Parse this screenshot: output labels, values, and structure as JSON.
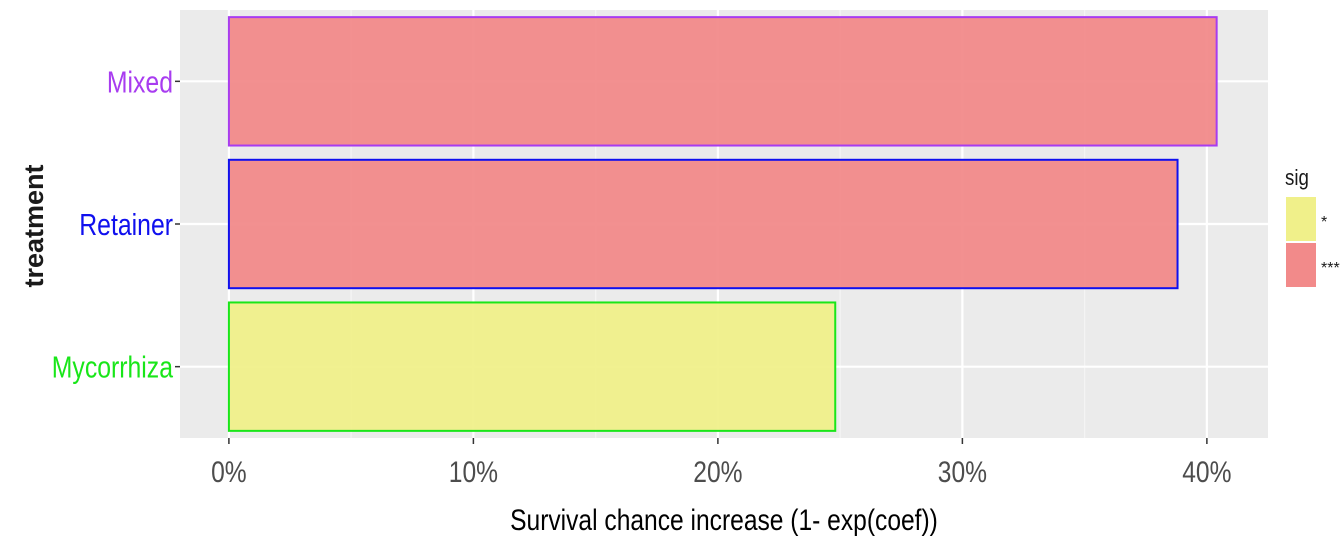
{
  "chart_data": {
    "type": "bar",
    "orientation": "horizontal",
    "categories": [
      "Mixed",
      "Retainer",
      "Mycorrhiza"
    ],
    "values": [
      40.4,
      38.8,
      24.8
    ],
    "value_unit": "%",
    "sig": [
      "***",
      "***",
      "*"
    ],
    "category_colors": [
      "#a83cf0",
      "#1010ee",
      "#19e619"
    ],
    "xlabel": "Survival chance increase (1- exp(coef))",
    "ylabel": "treatment",
    "xlim": [
      -2,
      42.5
    ],
    "xticks": [
      0,
      10,
      20,
      30,
      40
    ],
    "xtick_labels": [
      "0%",
      "10%",
      "20%",
      "30%",
      "40%"
    ],
    "grid": true,
    "panel_background": "#ebebeb",
    "legend": {
      "title": "sig",
      "position": "right",
      "entries": [
        {
          "label": "*",
          "color": "#f0f08a"
        },
        {
          "label": "***",
          "color": "#f28a8a"
        }
      ]
    }
  }
}
